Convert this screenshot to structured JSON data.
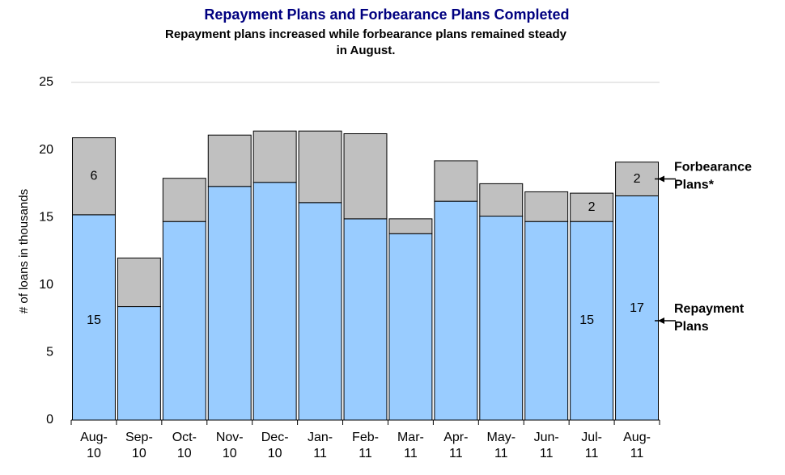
{
  "chart_data": {
    "type": "stacked_bar",
    "title": "Repayment Plans and Forbearance Plans Completed",
    "subtitle": [
      "Repayment plans increased while forbearance plans remained steady",
      "in August."
    ],
    "y_label": "# of loans in thousands",
    "categories": [
      "Aug-10",
      "Sep-10",
      "Oct-10",
      "Nov-10",
      "Dec-10",
      "Jan-11",
      "Feb-11",
      "Mar-11",
      "Apr-11",
      "May-11",
      "Jun-11",
      "Jul-11",
      "Aug-11"
    ],
    "series": [
      {
        "name": "Repayment Plans",
        "color": "#99ccff",
        "values": [
          15.2,
          8.4,
          14.7,
          17.3,
          17.6,
          16.1,
          14.9,
          13.8,
          16.2,
          15.1,
          14.7,
          14.7,
          16.6
        ],
        "value_labels": [
          "15",
          null,
          null,
          null,
          null,
          null,
          null,
          null,
          null,
          null,
          null,
          "15",
          "17"
        ]
      },
      {
        "name": "Forbearance Plans*",
        "color": "#c0c0c0",
        "values": [
          5.7,
          3.6,
          3.2,
          3.8,
          3.8,
          5.3,
          6.3,
          1.1,
          3.0,
          2.4,
          2.2,
          2.1,
          2.5
        ],
        "value_labels": [
          "6",
          null,
          null,
          null,
          null,
          null,
          null,
          null,
          null,
          null,
          null,
          "2",
          "2"
        ]
      }
    ],
    "ylim": [
      0,
      25
    ],
    "yticks": [
      0,
      5,
      10,
      15,
      20,
      25
    ],
    "grid": false
  }
}
